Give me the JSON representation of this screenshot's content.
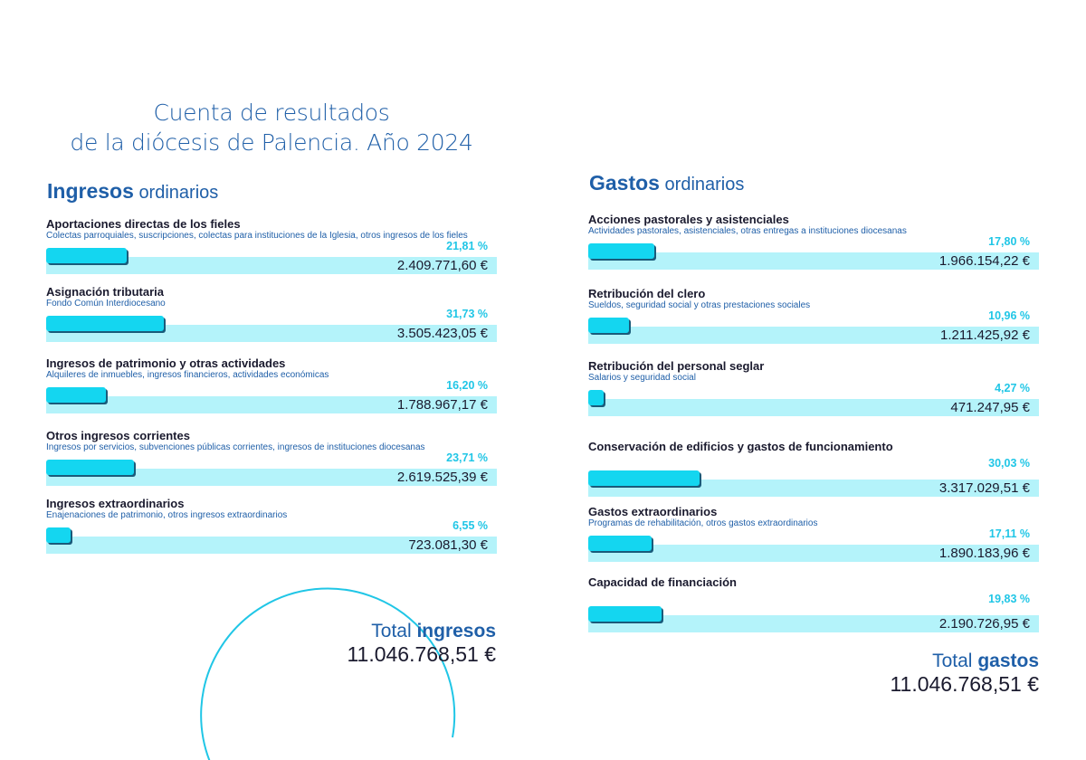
{
  "title": {
    "line1": "Cuenta de resultados",
    "line2": "de la diócesis de Palencia. Año 2024"
  },
  "ingresos": {
    "heading_bold": "Ingresos",
    "heading_rest": "ordinarios",
    "items": [
      {
        "title": "Aportaciones directas de los fieles",
        "subtitle": "Colectas parroquiales, suscripciones, colectas para instituciones de la Iglesia, otros ingresos de los fieles",
        "percent_label": "21,81 %",
        "percent": 21.81,
        "amount": "2.409.771,60 €"
      },
      {
        "title": "Asignación tributaria",
        "subtitle": "Fondo Común Interdiocesano",
        "percent_label": "31,73 %",
        "percent": 31.73,
        "amount": "3.505.423,05 €"
      },
      {
        "title": "Ingresos de patrimonio y otras actividades",
        "subtitle": "Alquileres de inmuebles, ingresos financieros, actividades económicas",
        "percent_label": "16,20 %",
        "percent": 16.2,
        "amount": "1.788.967,17 €"
      },
      {
        "title": "Otros ingresos corrientes",
        "subtitle": "Ingresos por servicios, subvenciones públicas corrientes, ingresos de instituciones diocesanas",
        "percent_label": "23,71 %",
        "percent": 23.71,
        "amount": "2.619.525,39 €"
      },
      {
        "title": "Ingresos extraordinarios",
        "subtitle": "Enajenaciones de patrimonio, otros ingresos extraordinarios",
        "percent_label": "6,55 %",
        "percent": 6.55,
        "amount": "723.081,30 €"
      }
    ],
    "total_label_light": "Total",
    "total_label_bold": "ingresos",
    "total_value": "11.046.768,51 €"
  },
  "gastos": {
    "heading_bold": "Gastos",
    "heading_rest": "ordinarios",
    "items": [
      {
        "title": "Acciones pastorales y asistenciales",
        "subtitle": "Actividades pastorales, asistenciales, otras entregas a instituciones diocesanas",
        "percent_label": "17,80 %",
        "percent": 17.8,
        "amount": "1.966.154,22 €"
      },
      {
        "title": "Retribución del clero",
        "subtitle": "Sueldos, seguridad social y otras prestaciones sociales",
        "percent_label": "10,96 %",
        "percent": 10.96,
        "amount": "1.211.425,92 €"
      },
      {
        "title": "Retribución del personal seglar",
        "subtitle": "Salarios y seguridad social",
        "percent_label": "4,27 %",
        "percent": 4.27,
        "amount": "471.247,95 €"
      },
      {
        "title": "Conservación de edificios y gastos de funcionamiento",
        "subtitle": "",
        "percent_label": "30,03 %",
        "percent": 30.03,
        "amount": "3.317.029,51 €"
      },
      {
        "title": "Gastos extraordinarios",
        "subtitle": "Programas de rehabilitación, otros gastos extraordinarios",
        "percent_label": "17,11 %",
        "percent": 17.11,
        "amount": "1.890.183,96 €"
      },
      {
        "title": "Capacidad de financiación",
        "subtitle": "",
        "percent_label": "19,83 %",
        "percent": 19.83,
        "amount": "2.190.726,95 €"
      }
    ],
    "total_label_light": "Total",
    "total_label_bold": "gastos",
    "total_value": "11.046.768,51 €"
  },
  "colors": {
    "accent_blue": "#1f5fa8",
    "bar_fill": "#14d6f0",
    "bar_track": "#b4f3fa",
    "percent_text": "#20c6e6"
  }
}
